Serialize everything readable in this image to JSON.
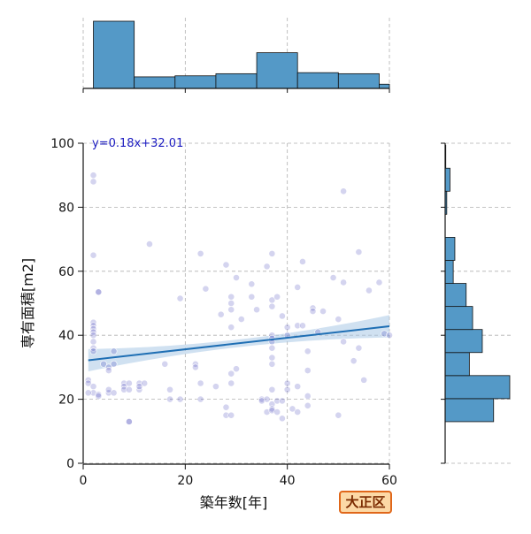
{
  "badge": "大正区",
  "colors": {
    "scatter": "#3a3ab8",
    "regression": "#1f6fb4",
    "ci_band": "#a9c8e6",
    "hist_fill": "#5499c7",
    "grid": "#b0b0b0"
  },
  "chart_data": {
    "type": "scatter",
    "title": "",
    "xlabel": "築年数[年]",
    "ylabel": "専有面積[m2]",
    "xlim": [
      0,
      60
    ],
    "ylim": [
      0,
      100
    ],
    "xticks": [
      0,
      20,
      40,
      60
    ],
    "yticks": [
      0,
      20,
      40,
      60,
      80,
      100
    ],
    "grid": true,
    "equation": "y=0.18x+32.01",
    "regression": {
      "slope": 0.18,
      "intercept": 32.01,
      "ci_halfwidth_edge": 3.5,
      "ci_halfwidth_center": 1.2
    },
    "points": [
      [
        2,
        90
      ],
      [
        2,
        88
      ],
      [
        2,
        65
      ],
      [
        3,
        53.5
      ],
      [
        3,
        53.5
      ],
      [
        2,
        44
      ],
      [
        2,
        43
      ],
      [
        2,
        42
      ],
      [
        2,
        41
      ],
      [
        2,
        40
      ],
      [
        2,
        38
      ],
      [
        2,
        36
      ],
      [
        2,
        35
      ],
      [
        1,
        26
      ],
      [
        1,
        25
      ],
      [
        2,
        24
      ],
      [
        2,
        22
      ],
      [
        3,
        21.5
      ],
      [
        1,
        22
      ],
      [
        3,
        21
      ],
      [
        4,
        31
      ],
      [
        5,
        30
      ],
      [
        6,
        31
      ],
      [
        5,
        29
      ],
      [
        5,
        22
      ],
      [
        5,
        23
      ],
      [
        6,
        22
      ],
      [
        6,
        35
      ],
      [
        8,
        25
      ],
      [
        8,
        24
      ],
      [
        8,
        23
      ],
      [
        9,
        25
      ],
      [
        9,
        23
      ],
      [
        9,
        13
      ],
      [
        9,
        13
      ],
      [
        11,
        25
      ],
      [
        11,
        23
      ],
      [
        11,
        24
      ],
      [
        12,
        25
      ],
      [
        13,
        68.5
      ],
      [
        16,
        31
      ],
      [
        17,
        23
      ],
      [
        17,
        20
      ],
      [
        19,
        20
      ],
      [
        19,
        51.5
      ],
      [
        22,
        31
      ],
      [
        22,
        30
      ],
      [
        23,
        65.5
      ],
      [
        23,
        25
      ],
      [
        23,
        20
      ],
      [
        24,
        54.5
      ],
      [
        26,
        24
      ],
      [
        27,
        46.5
      ],
      [
        28,
        62
      ],
      [
        28,
        17.5
      ],
      [
        28,
        15
      ],
      [
        29,
        52
      ],
      [
        29,
        50
      ],
      [
        29,
        48
      ],
      [
        29,
        42.5
      ],
      [
        29,
        28
      ],
      [
        29,
        25
      ],
      [
        29,
        15
      ],
      [
        30,
        58
      ],
      [
        30,
        29.5
      ],
      [
        31,
        45
      ],
      [
        33,
        52
      ],
      [
        33,
        56
      ],
      [
        34,
        48
      ],
      [
        35,
        20
      ],
      [
        35,
        19.5
      ],
      [
        36,
        61.5
      ],
      [
        36,
        20
      ],
      [
        36,
        16
      ],
      [
        37,
        65.5
      ],
      [
        37,
        51
      ],
      [
        37,
        49
      ],
      [
        37,
        40
      ],
      [
        37,
        39
      ],
      [
        37,
        38
      ],
      [
        37,
        36
      ],
      [
        37,
        33
      ],
      [
        37,
        31
      ],
      [
        37,
        23
      ],
      [
        37,
        18.5
      ],
      [
        37,
        17
      ],
      [
        37,
        16.5
      ],
      [
        38,
        52
      ],
      [
        38,
        19.5
      ],
      [
        38,
        16
      ],
      [
        39,
        46
      ],
      [
        39,
        19.5
      ],
      [
        39,
        14
      ],
      [
        40,
        40
      ],
      [
        40,
        25
      ],
      [
        40,
        23
      ],
      [
        40,
        42.5
      ],
      [
        41,
        17
      ],
      [
        42,
        55
      ],
      [
        42,
        24
      ],
      [
        42,
        43
      ],
      [
        42,
        16
      ],
      [
        43,
        63
      ],
      [
        43,
        43
      ],
      [
        44,
        21
      ],
      [
        44,
        18
      ],
      [
        44,
        29
      ],
      [
        44,
        35
      ],
      [
        45,
        48.5
      ],
      [
        45,
        47.5
      ],
      [
        46,
        41
      ],
      [
        47,
        47.5
      ],
      [
        49,
        58
      ],
      [
        50,
        45
      ],
      [
        50,
        15
      ],
      [
        51,
        85
      ],
      [
        51,
        56.5
      ],
      [
        51,
        38
      ],
      [
        53,
        32
      ],
      [
        54,
        36
      ],
      [
        54,
        66
      ],
      [
        55,
        26
      ],
      [
        56,
        54
      ],
      [
        58,
        56.5
      ],
      [
        59,
        40.5
      ],
      [
        60,
        40
      ]
    ],
    "x_marginal": {
      "bin_edges": [
        2,
        10,
        18,
        26,
        34,
        42,
        50,
        58,
        62
      ],
      "counts": [
        32,
        5.5,
        6,
        7,
        17,
        7.5,
        7,
        2
      ]
    },
    "y_marginal": {
      "bin_edges": [
        13,
        20.2,
        27.4,
        34.6,
        41.8,
        49,
        56.2,
        63.4,
        70.6,
        77.8,
        85,
        92.2,
        99.4
      ],
      "counts": [
        15,
        20,
        7.5,
        11.5,
        8.5,
        6.5,
        2.5,
        3,
        0,
        0.5,
        1.5,
        0.2
      ]
    }
  }
}
